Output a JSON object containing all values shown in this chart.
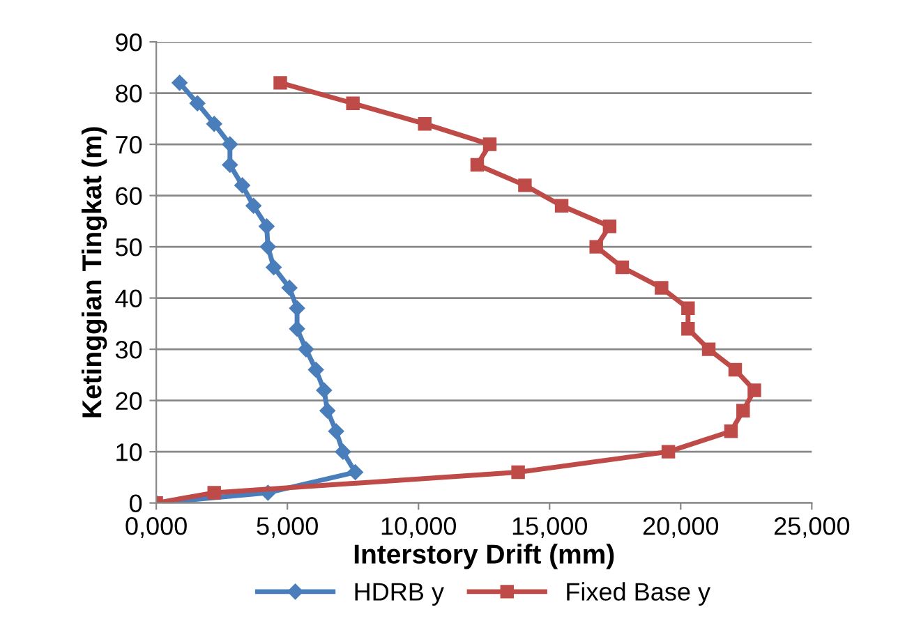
{
  "chart_data": {
    "type": "line",
    "xlabel": "Interstory Drift (mm)",
    "ylabel": "Ketinggian Tingkat (m)",
    "xlim": [
      0,
      25000
    ],
    "xticks": [
      {
        "value": 0,
        "label": "0,000"
      },
      {
        "value": 5000,
        "label": "5,000"
      },
      {
        "value": 10000,
        "label": "10,000"
      },
      {
        "value": 15000,
        "label": "15,000"
      },
      {
        "value": 20000,
        "label": "20,000"
      },
      {
        "value": 25000,
        "label": "25,000"
      }
    ],
    "ylim": [
      0,
      90
    ],
    "yticks": [
      0,
      10,
      20,
      30,
      40,
      50,
      60,
      70,
      80,
      90
    ],
    "grid": "y",
    "legend": "bottom",
    "line_style": "solid",
    "series": [
      {
        "name": "HDRB y",
        "color": "#4a7ebb",
        "marker": "diamond",
        "x": [
          0,
          4260,
          7590,
          7120,
          6860,
          6530,
          6400,
          6090,
          5710,
          5370,
          5370,
          5080,
          4480,
          4260,
          4210,
          3710,
          3280,
          2810,
          2810,
          2210,
          1570,
          890
        ],
        "values": [
          0,
          2,
          6,
          10,
          14,
          18,
          22,
          26,
          30,
          34,
          38,
          42,
          46,
          50,
          54,
          58,
          62,
          66,
          70,
          74,
          78,
          82
        ]
      },
      {
        "name": "Fixed Base y",
        "color": "#be4b48",
        "marker": "square",
        "x": [
          0,
          2210,
          13800,
          19530,
          21920,
          22380,
          22810,
          22080,
          21070,
          20280,
          20280,
          19270,
          17770,
          16780,
          17290,
          15460,
          14060,
          12240,
          12720,
          10240,
          7500,
          4730
        ],
        "values": [
          0,
          2,
          6,
          10,
          14,
          18,
          22,
          26,
          30,
          34,
          38,
          42,
          46,
          50,
          54,
          58,
          62,
          66,
          70,
          74,
          78,
          82
        ]
      }
    ]
  }
}
